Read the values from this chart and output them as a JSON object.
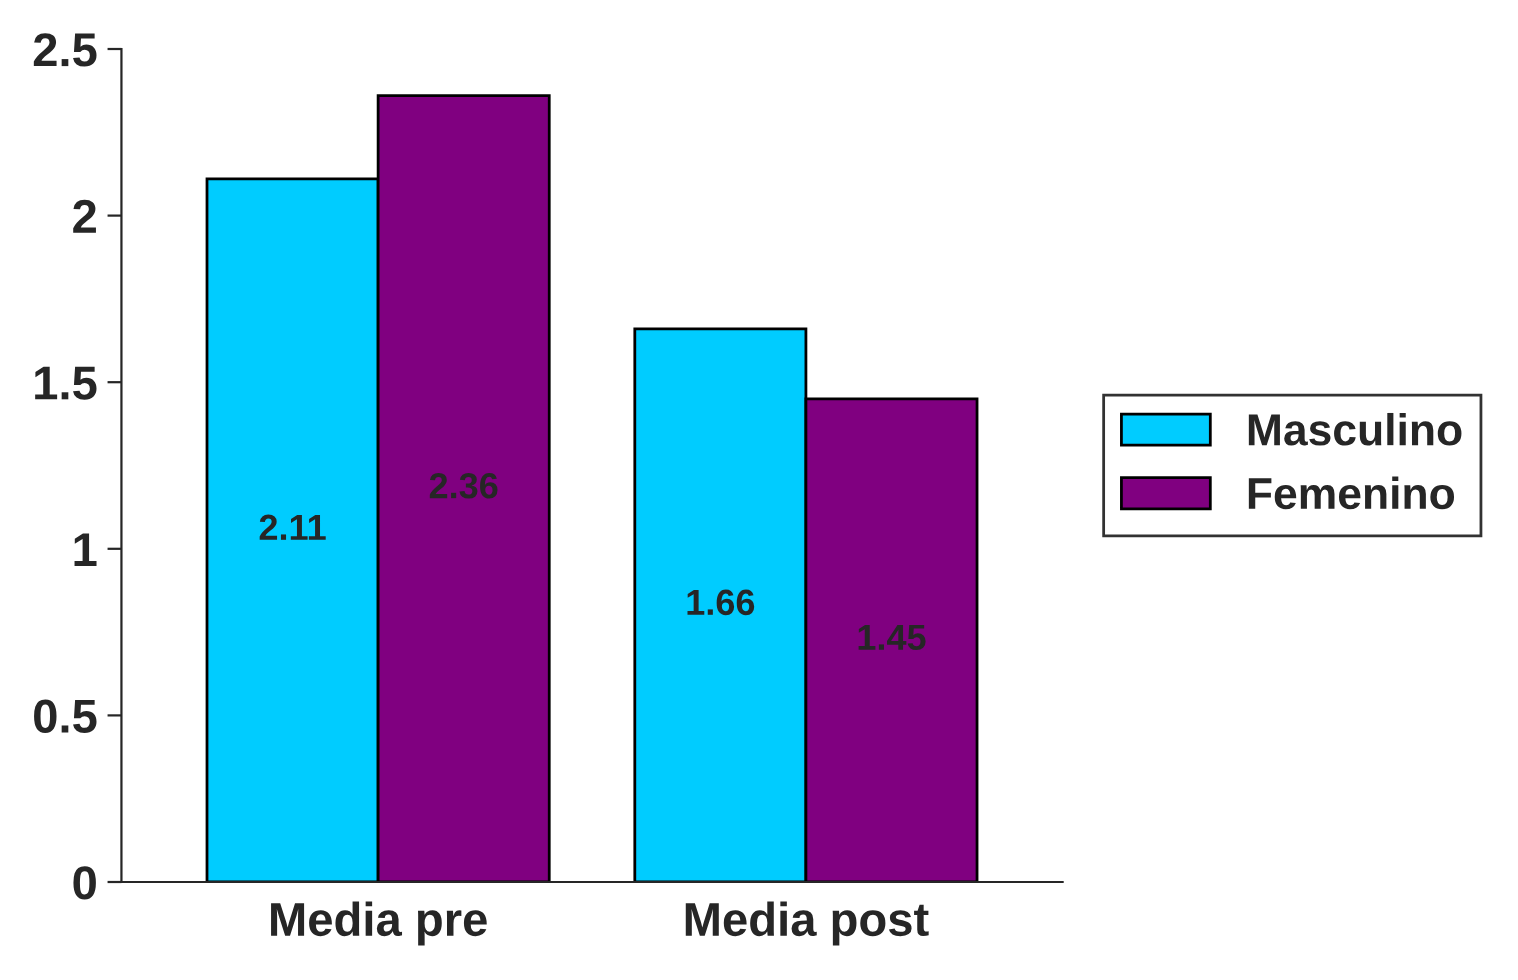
{
  "chart_data": {
    "type": "bar",
    "categories": [
      "Media pre",
      "Media post"
    ],
    "series": [
      {
        "name": "Masculino",
        "color": "#00ccff",
        "values": [
          2.11,
          1.66
        ]
      },
      {
        "name": "Femenino",
        "color": "#800080",
        "values": [
          2.36,
          1.45
        ]
      }
    ],
    "ylim": [
      0,
      2.5
    ],
    "yticks": [
      0,
      0.5,
      1,
      1.5,
      2,
      2.5
    ],
    "data_labels": true,
    "legend": "right",
    "grid": false
  }
}
